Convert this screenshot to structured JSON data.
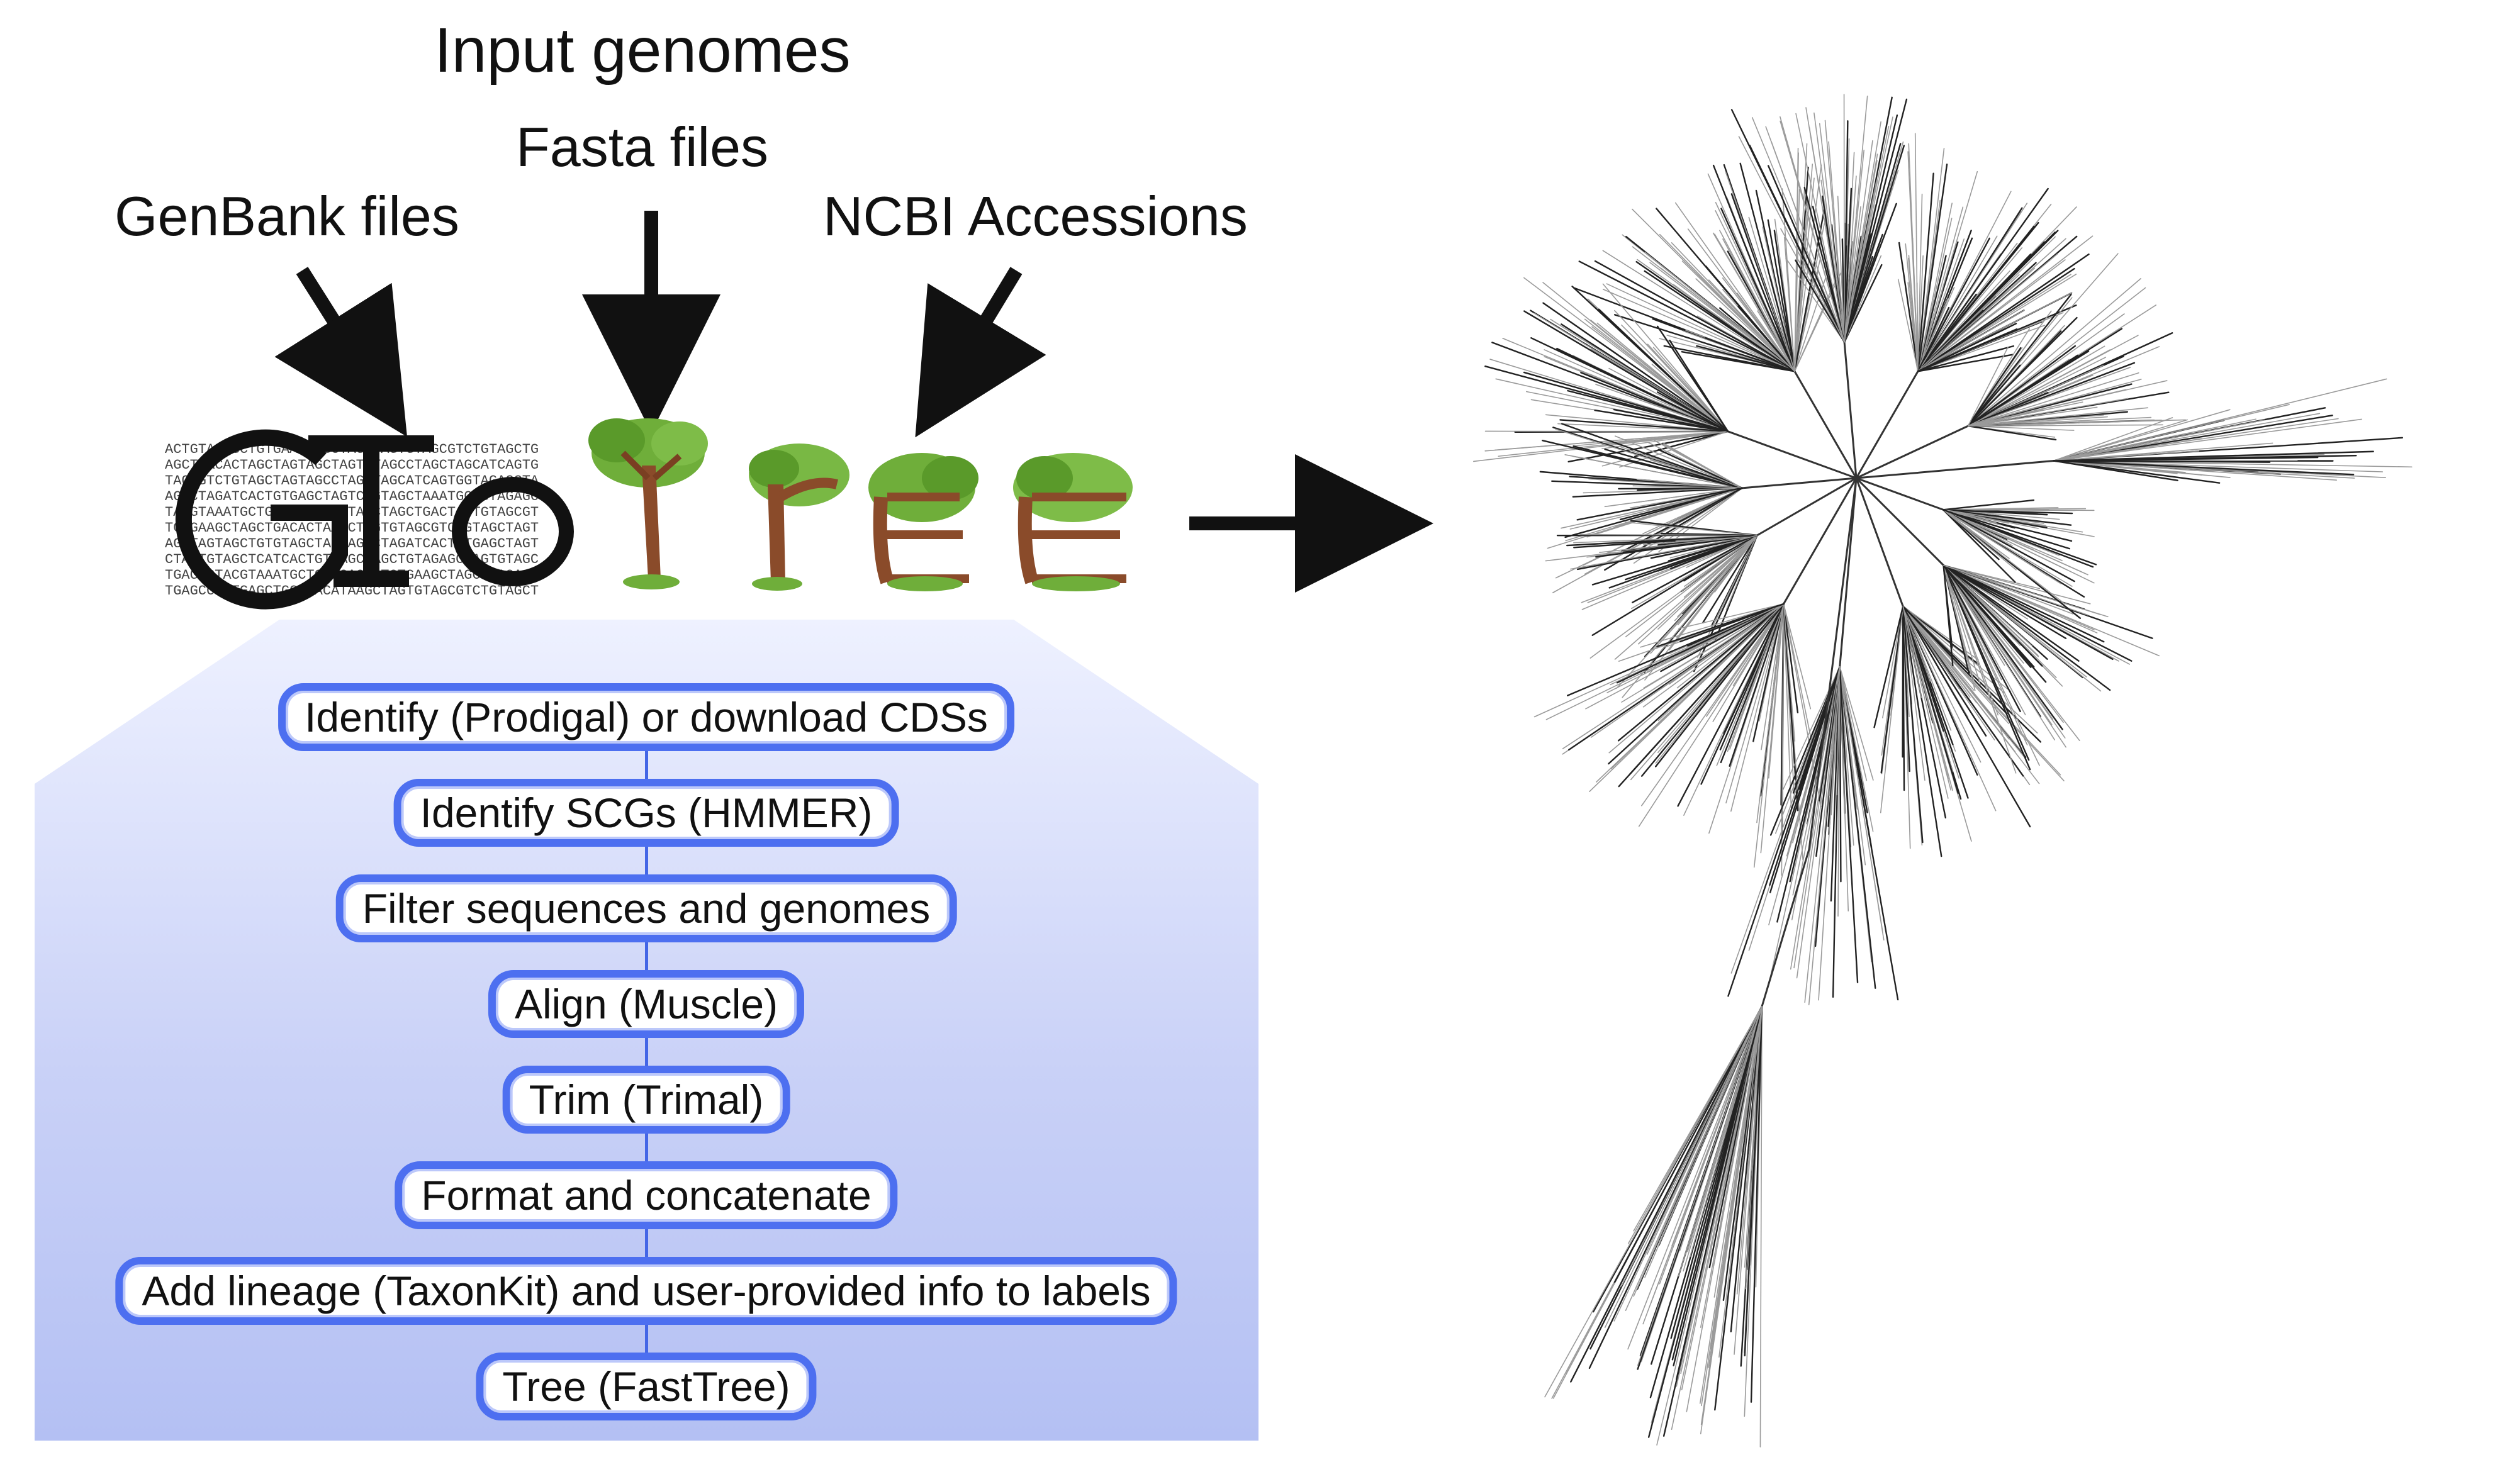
{
  "title": "Input genomes",
  "sources": {
    "fasta": "Fasta files",
    "genbank": "GenBank files",
    "ncbi": "NCBI Accessions"
  },
  "logo": {
    "text": "GToTree",
    "colors": {
      "outline": "#111111",
      "trunk": "#8a4b2a",
      "leaf": "#6fae3a"
    }
  },
  "pipeline": {
    "accent_color": "#4d6ff0",
    "steps": [
      "Identify (Prodigal) or download CDSs",
      "Identify SCGs (HMMER)",
      "Filter sequences and genomes",
      "Align (Muscle)",
      "Trim (Trimal)",
      "Format and concatenate",
      "Add lineage (TaxonKit) and user-provided info to labels",
      "Tree (FastTree)"
    ]
  },
  "tree": {
    "description_icon": "unrooted-phylogenetic-tree-icon"
  }
}
